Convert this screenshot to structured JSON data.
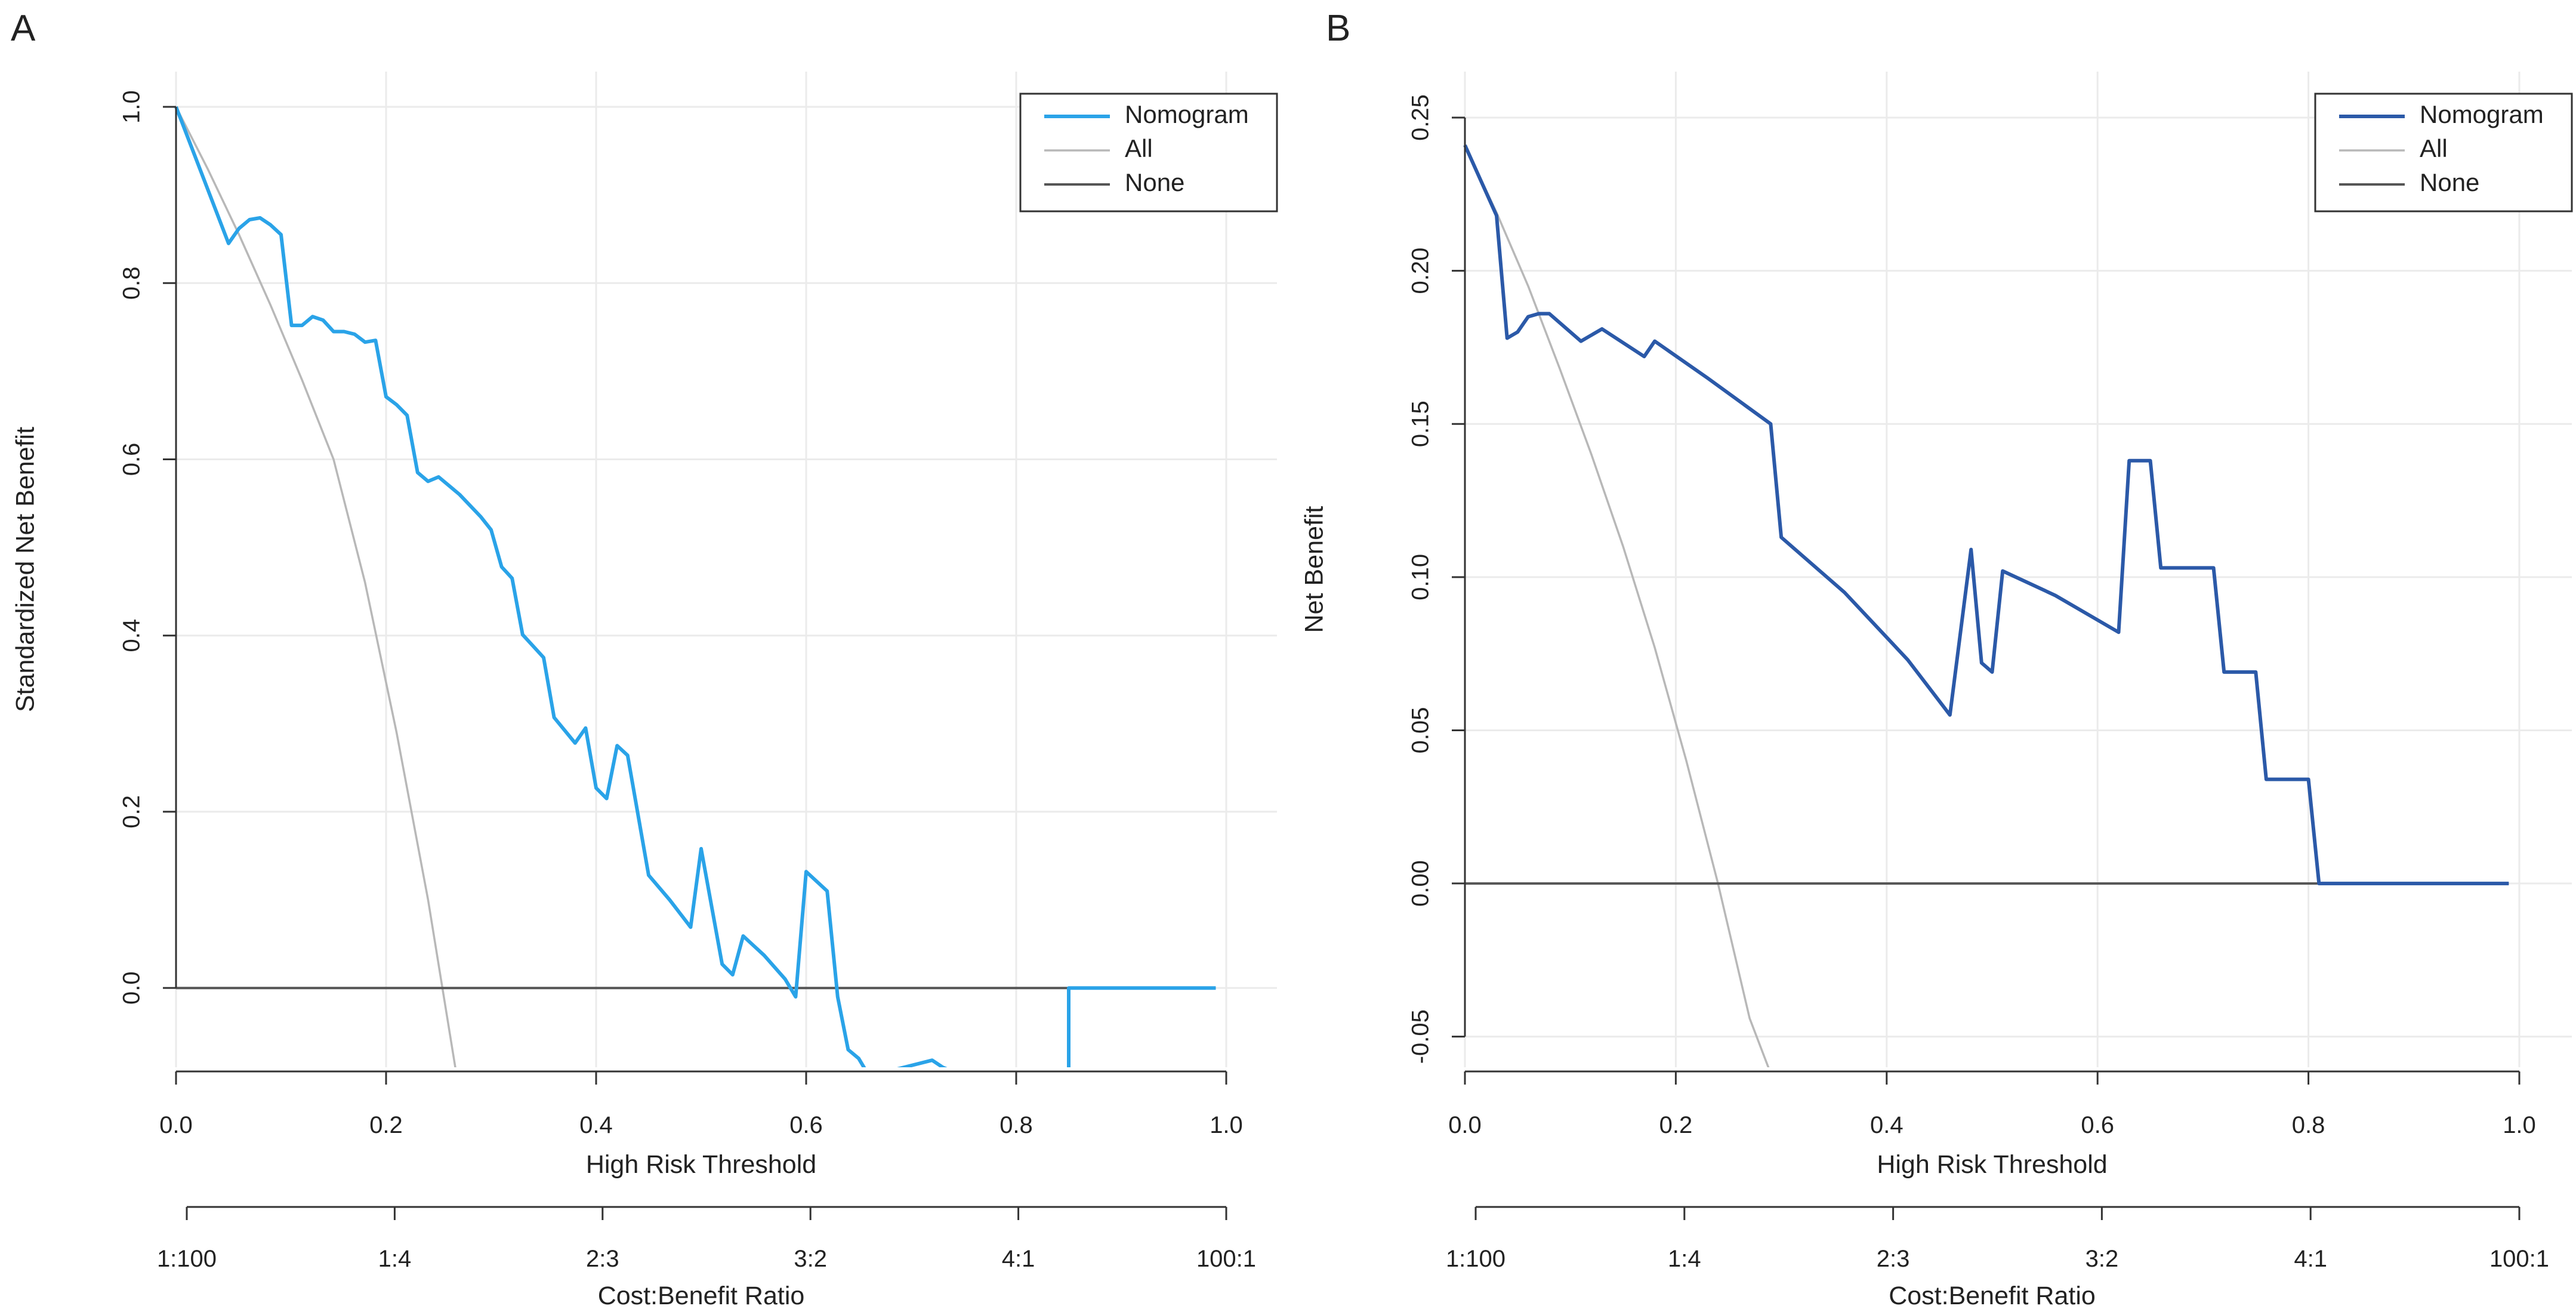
{
  "chart_data": [
    {
      "type": "line",
      "panel_label": "A",
      "xlabel": "High Risk Threshold",
      "ylabel": "Standardized Net Benefit",
      "secondary_xlabel": "Cost:Benefit Ratio",
      "xlim": [
        0,
        1
      ],
      "ylim": [
        -0.09,
        1.04
      ],
      "x_ticks": [
        "0.0",
        "0.2",
        "0.4",
        "0.6",
        "0.8",
        "1.0"
      ],
      "y_ticks": [
        "0.0",
        "0.2",
        "0.4",
        "0.6",
        "0.8",
        "1.0"
      ],
      "cost_benefit_ticks": [
        "1:100",
        "1:4",
        "2:3",
        "3:2",
        "4:1",
        "100:1"
      ],
      "grid": true,
      "legend_position": "top-right",
      "colors": {
        "Nomogram": "#2aa3e8",
        "All": "#b8b8b8",
        "None": "#555555"
      },
      "series": [
        {
          "name": "Nomogram",
          "x": [
            0.0,
            0.05,
            0.06,
            0.07,
            0.08,
            0.09,
            0.1,
            0.11,
            0.12,
            0.13,
            0.14,
            0.15,
            0.16,
            0.17,
            0.18,
            0.19,
            0.2,
            0.21,
            0.22,
            0.23,
            0.24,
            0.25,
            0.27,
            0.29,
            0.3,
            0.31,
            0.32,
            0.33,
            0.35,
            0.36,
            0.38,
            0.39,
            0.4,
            0.41,
            0.42,
            0.43,
            0.45,
            0.47,
            0.49,
            0.5,
            0.52,
            0.53,
            0.54,
            0.56,
            0.58,
            0.59,
            0.6,
            0.62,
            0.63,
            0.64,
            0.65,
            0.66,
            0.72,
            0.73,
            0.75,
            0.85,
            0.85,
            0.99
          ],
          "y": [
            1.0,
            0.845,
            0.862,
            0.872,
            0.874,
            0.866,
            0.855,
            0.752,
            0.752,
            0.762,
            0.758,
            0.745,
            0.745,
            0.742,
            0.733,
            0.735,
            0.671,
            0.662,
            0.65,
            0.585,
            0.575,
            0.58,
            0.56,
            0.535,
            0.52,
            0.478,
            0.465,
            0.401,
            0.375,
            0.307,
            0.278,
            0.295,
            0.227,
            0.215,
            0.275,
            0.264,
            0.128,
            0.1,
            0.069,
            0.158,
            0.027,
            0.015,
            0.059,
            0.037,
            0.01,
            -0.01,
            0.132,
            0.11,
            -0.01,
            -0.07,
            -0.08,
            -0.1,
            -0.082,
            -0.09,
            -0.1,
            -0.095,
            0.0,
            0.0
          ]
        },
        {
          "name": "All",
          "x": [
            0.0,
            0.03,
            0.06,
            0.09,
            0.12,
            0.15,
            0.18,
            0.21,
            0.24,
            0.27
          ],
          "y": [
            1.0,
            0.93,
            0.855,
            0.775,
            0.69,
            0.6,
            0.46,
            0.29,
            0.1,
            -0.12
          ]
        },
        {
          "name": "None",
          "x": [
            0.0,
            0.99
          ],
          "y": [
            0.0,
            0.0
          ]
        }
      ]
    },
    {
      "type": "line",
      "panel_label": "B",
      "xlabel": "High Risk Threshold",
      "ylabel": "Net Benefit",
      "secondary_xlabel": "Cost:Benefit Ratio",
      "xlim": [
        0,
        1
      ],
      "ylim": [
        -0.06,
        0.265
      ],
      "x_ticks": [
        "0.0",
        "0.2",
        "0.4",
        "0.6",
        "0.8",
        "1.0"
      ],
      "y_ticks": [
        "-0.05",
        "0.00",
        "0.05",
        "0.10",
        "0.15",
        "0.20",
        "0.25"
      ],
      "cost_benefit_ticks": [
        "1:100",
        "1:4",
        "2:3",
        "3:2",
        "4:1",
        "100:1"
      ],
      "grid": true,
      "legend_position": "top-right",
      "colors": {
        "Nomogram": "#2b59a8",
        "All": "#b8b8b8",
        "None": "#555555"
      },
      "series": [
        {
          "name": "Nomogram",
          "x": [
            0.0,
            0.03,
            0.04,
            0.05,
            0.06,
            0.07,
            0.08,
            0.11,
            0.13,
            0.17,
            0.18,
            0.23,
            0.29,
            0.3,
            0.36,
            0.42,
            0.46,
            0.48,
            0.49,
            0.5,
            0.51,
            0.56,
            0.62,
            0.63,
            0.65,
            0.66,
            0.71,
            0.72,
            0.75,
            0.76,
            0.8,
            0.81,
            0.99
          ],
          "y": [
            0.241,
            0.218,
            0.178,
            0.18,
            0.185,
            0.186,
            0.186,
            0.177,
            0.181,
            0.172,
            0.177,
            0.165,
            0.15,
            0.113,
            0.095,
            0.073,
            0.055,
            0.109,
            0.072,
            0.069,
            0.102,
            0.094,
            0.082,
            0.138,
            0.138,
            0.103,
            0.103,
            0.069,
            0.069,
            0.034,
            0.034,
            0.0,
            0.0
          ]
        },
        {
          "name": "All",
          "x": [
            0.0,
            0.03,
            0.06,
            0.09,
            0.12,
            0.15,
            0.18,
            0.21,
            0.24,
            0.27,
            0.29
          ],
          "y": [
            0.241,
            0.219,
            0.195,
            0.168,
            0.14,
            0.11,
            0.077,
            0.04,
            0.0,
            -0.044,
            -0.062
          ]
        },
        {
          "name": "None",
          "x": [
            0.0,
            0.99
          ],
          "y": [
            0.0,
            0.0
          ]
        }
      ]
    }
  ]
}
